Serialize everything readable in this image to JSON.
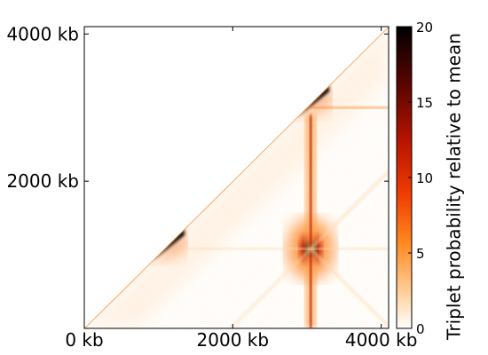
{
  "chart_data": {
    "type": "heatmap",
    "title": "",
    "xlabel": "",
    "ylabel": "",
    "x_range_kb": [
      0,
      4100
    ],
    "y_range_kb": [
      0,
      4100
    ],
    "x_ticks": [
      {
        "value": 0,
        "label": "0 kb"
      },
      {
        "value": 2000,
        "label": "2000 kb"
      },
      {
        "value": 4000,
        "label": "4000 kb"
      }
    ],
    "y_ticks": [
      {
        "value": 2000,
        "label": "2000 kb"
      },
      {
        "value": 4000,
        "label": "4000 kb"
      }
    ],
    "grid": false,
    "masked_region": "upper-left triangle above diagonal (empty/white)",
    "colormap": "white-orange-red-black",
    "colormap_stops": [
      "#ffffff",
      "#ffb070",
      "#ff6a00",
      "#d11a00",
      "#7a0a00",
      "#000000"
    ],
    "colorbar": {
      "label": "Triplet probability relative to mean",
      "range": [
        0,
        20
      ],
      "ticks": [
        {
          "value": 0,
          "label": "0"
        },
        {
          "value": 5,
          "label": "5"
        },
        {
          "value": 10,
          "label": "10"
        },
        {
          "value": 15,
          "label": "15"
        },
        {
          "value": 20,
          "label": "20"
        }
      ],
      "placement": "right"
    },
    "features": [
      {
        "name": "diagonal-domain",
        "x_start_kb": 900,
        "x_end_kb": 1350,
        "peak_value": 20
      },
      {
        "name": "diagonal-domain",
        "x_start_kb": 2850,
        "x_end_kb": 3300,
        "peak_value": 20
      },
      {
        "name": "hotspot",
        "x_kb": 3050,
        "y_kb": 1080,
        "peak_value": 20
      },
      {
        "name": "vertical-stripe",
        "x_kb": 3050,
        "y_start_kb": 0,
        "y_end_kb": 2900,
        "value": 12
      },
      {
        "name": "horizontal-stripe",
        "y_kb": 3000,
        "x_start_kb": 3000,
        "x_end_kb": 4100,
        "value": 6
      },
      {
        "name": "horizontal-stripe",
        "y_kb": 1080,
        "x_start_kb": 1300,
        "x_end_kb": 4100,
        "value": 2
      }
    ]
  }
}
